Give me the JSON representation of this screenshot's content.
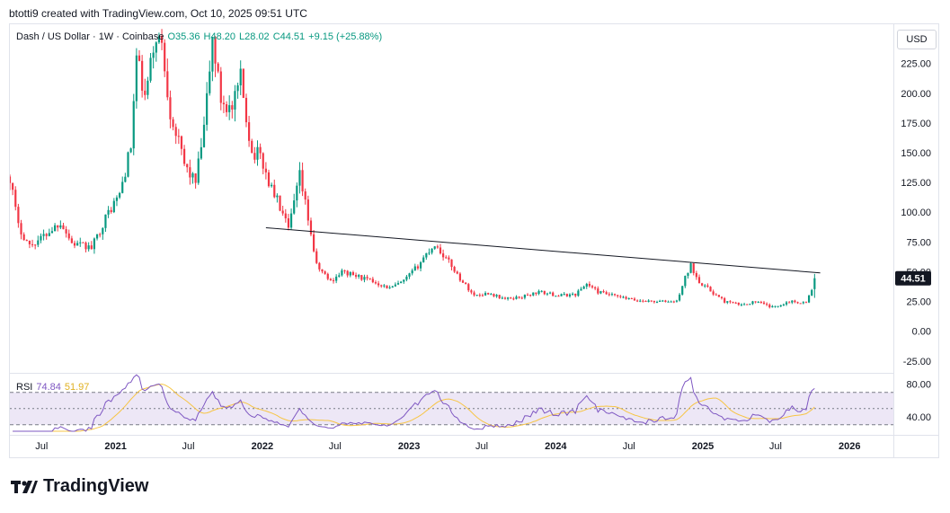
{
  "header": {
    "created_by": "btotti9 created with TradingView.com, Oct 10, 2025 09:51 UTC"
  },
  "legend": {
    "symbol": "Dash / US Dollar · 1W · Coinbase",
    "open": "O35.36",
    "high": "H48.20",
    "low": "L28.02",
    "close": "C44.51",
    "change": "+9.15 (+25.88%)"
  },
  "rsi_legend": {
    "name": "RSI",
    "value": "74.84",
    "ma_value": "51.97"
  },
  "currency": "USD",
  "brand": {
    "name": "TradingView"
  },
  "colors": {
    "up": "#089981",
    "down": "#f23645",
    "rsi": "#7e57c2",
    "rsi_ma": "#f7c544",
    "rsi_band": "#ede7f6",
    "trendline": "#131722",
    "last_price_bg": "#131722"
  },
  "chart_data": [
    {
      "type": "candlestick",
      "title": "Dash / US Dollar · 1W · Coinbase",
      "y_ticks": [
        225,
        200,
        175,
        150,
        125,
        100,
        75,
        50,
        25,
        0,
        -25
      ],
      "y_tick_labels": [
        "225.00",
        "200.00",
        "175.00",
        "150.00",
        "125.00",
        "100.00",
        "75.00",
        "50.00",
        "25.00",
        "0.00",
        "-25.00"
      ],
      "ylim": [
        -35,
        258
      ],
      "x_range": [
        "2020-04-13",
        "2026-04-20"
      ],
      "x_ticks": [
        {
          "date": "2020-07-01",
          "label": "Jul"
        },
        {
          "date": "2021-01-01",
          "label": "2021"
        },
        {
          "date": "2021-07-01",
          "label": "Jul"
        },
        {
          "date": "2022-01-01",
          "label": "2022"
        },
        {
          "date": "2022-07-01",
          "label": "Jul"
        },
        {
          "date": "2023-01-01",
          "label": "2023"
        },
        {
          "date": "2023-07-01",
          "label": "Jul"
        },
        {
          "date": "2024-01-01",
          "label": "2024"
        },
        {
          "date": "2024-07-01",
          "label": "Jul"
        },
        {
          "date": "2025-01-01",
          "label": "2025"
        },
        {
          "date": "2025-07-01",
          "label": "Jul"
        },
        {
          "date": "2026-01-01",
          "label": "2026"
        }
      ],
      "last_price": 44.51,
      "last_price_label": "44.51",
      "anchors": [
        [
          "2020-04-13",
          130
        ],
        [
          "2020-05-04",
          88
        ],
        [
          "2020-06-01",
          72
        ],
        [
          "2020-06-29",
          78
        ],
        [
          "2020-08-17",
          92
        ],
        [
          "2020-09-14",
          74
        ],
        [
          "2020-11-02",
          70
        ],
        [
          "2020-12-14",
          100
        ],
        [
          "2021-01-11",
          115
        ],
        [
          "2021-02-08",
          155
        ],
        [
          "2021-02-22",
          230
        ],
        [
          "2021-03-15",
          195
        ],
        [
          "2021-04-12",
          250
        ],
        [
          "2021-04-26",
          240
        ],
        [
          "2021-05-17",
          185
        ],
        [
          "2021-06-21",
          140
        ],
        [
          "2021-07-19",
          125
        ],
        [
          "2021-08-09",
          170
        ],
        [
          "2021-08-30",
          245
        ],
        [
          "2021-09-20",
          195
        ],
        [
          "2021-10-18",
          185
        ],
        [
          "2021-11-08",
          212
        ],
        [
          "2021-12-06",
          150
        ],
        [
          "2021-12-27",
          148
        ],
        [
          "2022-01-17",
          125
        ],
        [
          "2022-02-07",
          110
        ],
        [
          "2022-03-07",
          85
        ],
        [
          "2022-04-04",
          130
        ],
        [
          "2022-04-25",
          95
        ],
        [
          "2022-05-16",
          55
        ],
        [
          "2022-06-20",
          42
        ],
        [
          "2022-07-18",
          50
        ],
        [
          "2022-09-05",
          45
        ],
        [
          "2022-10-17",
          40
        ],
        [
          "2022-11-14",
          36
        ],
        [
          "2022-12-19",
          42
        ],
        [
          "2023-01-23",
          55
        ],
        [
          "2023-02-13",
          65
        ],
        [
          "2023-03-06",
          73
        ],
        [
          "2023-04-17",
          55
        ],
        [
          "2023-05-08",
          44
        ],
        [
          "2023-06-12",
          30
        ],
        [
          "2023-07-17",
          32
        ],
        [
          "2023-08-28",
          27
        ],
        [
          "2023-10-09",
          29
        ],
        [
          "2023-11-20",
          33
        ],
        [
          "2024-01-08",
          30
        ],
        [
          "2024-02-19",
          31
        ],
        [
          "2024-03-18",
          40
        ],
        [
          "2024-04-15",
          33
        ],
        [
          "2024-06-03",
          29
        ],
        [
          "2024-07-15",
          26
        ],
        [
          "2024-09-02",
          25
        ],
        [
          "2024-10-28",
          25
        ],
        [
          "2024-11-18",
          45
        ],
        [
          "2024-12-02",
          55
        ],
        [
          "2024-12-23",
          42
        ],
        [
          "2025-01-27",
          32
        ],
        [
          "2025-02-24",
          25
        ],
        [
          "2025-04-07",
          22
        ],
        [
          "2025-05-12",
          25
        ],
        [
          "2025-06-23",
          20
        ],
        [
          "2025-08-04",
          25
        ],
        [
          "2025-09-15",
          24
        ],
        [
          "2025-09-29",
          35.36
        ],
        [
          "2025-10-06",
          44.51
        ]
      ]
    },
    {
      "type": "line",
      "title": "RSI",
      "series": [
        {
          "name": "RSI"
        }
      ],
      "y_ticks": [
        80,
        40
      ],
      "y_tick_labels": [
        "80.00",
        "40.00"
      ],
      "bands": [
        70,
        50,
        30
      ],
      "ylim": [
        22,
        93
      ],
      "last_value": 74.84,
      "last_ma_value": 51.97
    }
  ],
  "trendline": {
    "from": [
      "2022-01-10",
      87
    ],
    "to": [
      "2025-10-20",
      49
    ]
  }
}
